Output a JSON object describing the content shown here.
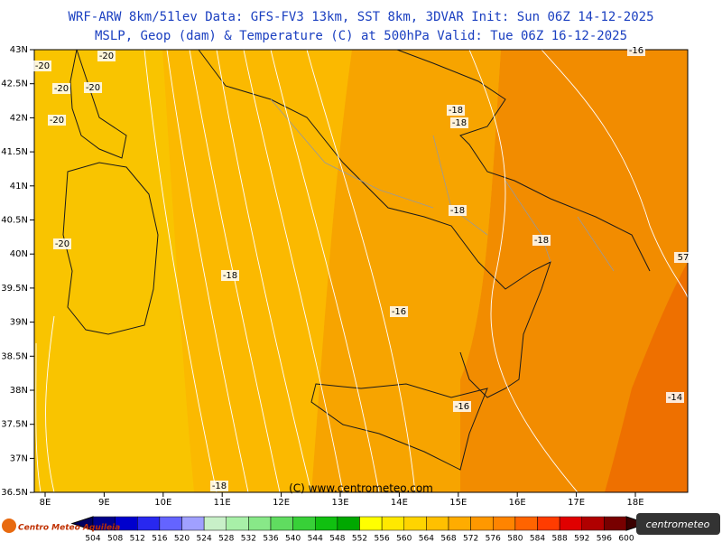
{
  "header": {
    "line1": "WRF-ARW 8km/51lev  Data: GFS-FV3 13km, SST 8km, 3DVAR  Init: Sun 06Z 14-12-2025",
    "line2": "MSLP, Geop (dam) & Temperature (C) at 500hPa  Valid: Tue 06Z 16-12-2025"
  },
  "map": {
    "lat_labels": [
      "43N",
      "42.5N",
      "42N",
      "41.5N",
      "41N",
      "40.5N",
      "40N",
      "39.5N",
      "39N",
      "38.5N",
      "38N",
      "37.5N",
      "37N",
      "36.5N"
    ],
    "lon_labels": [
      "8E",
      "9E",
      "10E",
      "11E",
      "12E",
      "13E",
      "14E",
      "15E",
      "16E",
      "17E",
      "18E"
    ],
    "contour_labels": [
      "-20",
      "-20",
      "-20",
      "-20",
      "-20",
      "-20",
      "-18",
      "-18",
      "-18",
      "-18",
      "-18",
      "-18",
      "-16",
      "-16",
      "-16",
      "-14",
      "57"
    ],
    "credit": "(C) www.centrometeo.com"
  },
  "colorbar": {
    "labels": [
      504,
      508,
      512,
      516,
      520,
      524,
      528,
      532,
      536,
      540,
      544,
      548,
      552,
      556,
      560,
      564,
      568,
      572,
      576,
      580,
      584,
      588,
      592,
      596,
      600
    ],
    "colors": [
      "#00008b",
      "#0000cd",
      "#2828f0",
      "#6464ff",
      "#a0a0ff",
      "#c8f0c8",
      "#a8f0a8",
      "#88e888",
      "#60dc60",
      "#38d038",
      "#10c010",
      "#00a800",
      "#ffff00",
      "#ffe800",
      "#ffd400",
      "#ffc000",
      "#ffac00",
      "#ff9800",
      "#ff8400",
      "#ff6400",
      "#ff3c00",
      "#e00000",
      "#b00000",
      "#780000"
    ]
  },
  "logos": {
    "left": "Centro Meteo Aquileia",
    "right": "centrometeo"
  }
}
